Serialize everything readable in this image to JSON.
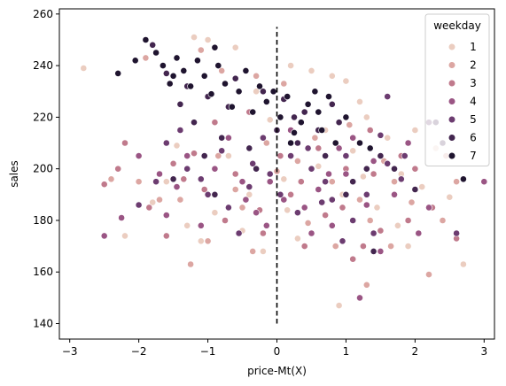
{
  "chart_data": {
    "type": "scatter",
    "xlabel": "price-Mt(X)",
    "ylabel": "sales",
    "xlim": [
      -3.15,
      3.15
    ],
    "ylim": [
      134,
      262
    ],
    "xticks": [
      -3,
      -2,
      -1,
      0,
      1,
      2,
      3
    ],
    "xtick_labels": [
      "−3",
      "−2",
      "−1",
      "0",
      "1",
      "2",
      "3"
    ],
    "yticks": [
      140,
      160,
      180,
      200,
      220,
      240,
      260
    ],
    "ytick_labels": [
      "140",
      "160",
      "180",
      "200",
      "220",
      "240",
      "260"
    ],
    "grid": false,
    "legend": {
      "title": "weekday",
      "placement": "top-right",
      "entries": [
        "1",
        "2",
        "3",
        "4",
        "5",
        "6",
        "7"
      ]
    },
    "palette": {
      "1": "#ebcdc0",
      "2": "#dca6a2",
      "3": "#c07a8c",
      "4": "#9a5584",
      "5": "#6c3c70",
      "6": "#43264f",
      "7": "#1f142f"
    },
    "reference_line": {
      "x": 0,
      "y_from": 140,
      "y_to": 255,
      "style": "dashed",
      "color": "#000000"
    },
    "series": [
      {
        "name": "1",
        "points": [
          [
            -2.8,
            239
          ],
          [
            -1.2,
            251
          ],
          [
            -1.0,
            250
          ],
          [
            -0.6,
            247
          ],
          [
            0.2,
            240
          ],
          [
            0.5,
            238
          ],
          [
            0.8,
            236
          ],
          [
            1.0,
            234
          ],
          [
            1.2,
            226
          ],
          [
            2.5,
            189
          ],
          [
            2.7,
            163
          ],
          [
            1.9,
            170
          ],
          [
            2.1,
            193
          ],
          [
            1.5,
            205
          ],
          [
            1.8,
            198
          ],
          [
            0.9,
            147
          ],
          [
            -0.2,
            168
          ],
          [
            0.3,
            173
          ],
          [
            -1.6,
            195
          ],
          [
            -1.3,
            178
          ],
          [
            -0.9,
            183
          ],
          [
            -0.4,
            190
          ],
          [
            0.1,
            196
          ],
          [
            0.6,
            201
          ],
          [
            1.1,
            207
          ],
          [
            1.6,
            212
          ],
          [
            2.0,
            215
          ],
          [
            -2.2,
            174
          ],
          [
            -1.8,
            187
          ],
          [
            -0.7,
            205
          ],
          [
            0.4,
            222
          ],
          [
            0.7,
            215
          ],
          [
            1.3,
            220
          ],
          [
            -0.3,
            230
          ],
          [
            -0.1,
            219
          ],
          [
            0.95,
            190
          ],
          [
            1.45,
            185
          ],
          [
            1.75,
            178
          ],
          [
            -1.1,
            172
          ],
          [
            -0.5,
            176
          ],
          [
            0.15,
            184
          ],
          [
            2.3,
            208
          ],
          [
            1.25,
            197
          ],
          [
            -1.45,
            209
          ]
        ]
      },
      {
        "name": "2",
        "points": [
          [
            -1.9,
            243
          ],
          [
            -1.1,
            246
          ],
          [
            -0.8,
            238
          ],
          [
            -0.3,
            236
          ],
          [
            0.1,
            233
          ],
          [
            2.2,
            159
          ],
          [
            2.4,
            180
          ],
          [
            1.3,
            155
          ],
          [
            -1.4,
            188
          ],
          [
            -1.0,
            172
          ],
          [
            -0.5,
            185
          ],
          [
            0.0,
            199
          ],
          [
            0.3,
            203
          ],
          [
            0.8,
            195
          ],
          [
            1.2,
            188
          ],
          [
            1.7,
            195
          ],
          [
            2.6,
            195
          ],
          [
            -2.4,
            196
          ],
          [
            -1.7,
            188
          ],
          [
            -1.25,
            163
          ],
          [
            -0.6,
            192
          ],
          [
            0.55,
            212
          ],
          [
            1.05,
            217
          ],
          [
            1.55,
            203
          ],
          [
            1.95,
            187
          ],
          [
            -0.15,
            210
          ],
          [
            0.45,
            179
          ],
          [
            0.85,
            170
          ],
          [
            1.35,
            180
          ],
          [
            -0.85,
            205
          ],
          [
            -2.0,
            195
          ],
          [
            2.45,
            205
          ],
          [
            1.65,
            170
          ],
          [
            -0.35,
            168
          ]
        ]
      },
      {
        "name": "3",
        "points": [
          [
            -2.2,
            210
          ],
          [
            -2.3,
            200
          ],
          [
            -1.5,
            202
          ],
          [
            -1.2,
            206
          ],
          [
            -0.6,
            198
          ],
          [
            0.2,
            190
          ],
          [
            0.7,
            182
          ],
          [
            1.4,
            198
          ],
          [
            1.8,
            205
          ],
          [
            2.6,
            173
          ],
          [
            -1.6,
            174
          ],
          [
            -0.2,
            175
          ],
          [
            0.4,
            170
          ],
          [
            1.1,
            165
          ],
          [
            1.5,
            176
          ],
          [
            2.0,
            200
          ],
          [
            -0.9,
            218
          ],
          [
            -0.4,
            222
          ],
          [
            0.6,
            208
          ],
          [
            1.0,
            200
          ],
          [
            1.35,
            215
          ],
          [
            -1.85,
            185
          ],
          [
            -1.05,
            192
          ],
          [
            -0.25,
            184
          ],
          [
            0.95,
            185
          ],
          [
            1.25,
            170
          ],
          [
            1.7,
            190
          ],
          [
            0.35,
            195
          ],
          [
            -0.75,
            180
          ],
          [
            2.25,
            185
          ],
          [
            -2.5,
            194
          ],
          [
            1.9,
            180
          ],
          [
            0.05,
            205
          ],
          [
            -1.35,
            196
          ]
        ]
      },
      {
        "name": "4",
        "points": [
          [
            -2.5,
            174
          ],
          [
            -2.25,
            181
          ],
          [
            -1.7,
            198
          ],
          [
            -1.3,
            205
          ],
          [
            -0.9,
            200
          ],
          [
            -0.5,
            195
          ],
          [
            0.1,
            188
          ],
          [
            0.4,
            185
          ],
          [
            0.8,
            178
          ],
          [
            1.2,
            150
          ],
          [
            1.5,
            168
          ],
          [
            1.7,
            190
          ],
          [
            2.2,
            185
          ],
          [
            3.0,
            195
          ],
          [
            -1.6,
            182
          ],
          [
            -1.1,
            178
          ],
          [
            -0.3,
            183
          ],
          [
            0.6,
            192
          ],
          [
            1.0,
            198
          ],
          [
            1.4,
            203
          ],
          [
            1.9,
            210
          ],
          [
            -2.0,
            205
          ],
          [
            -0.7,
            212
          ],
          [
            0.2,
            215
          ],
          [
            0.9,
            208
          ],
          [
            -0.1,
            195
          ],
          [
            0.5,
            175
          ],
          [
            1.3,
            186
          ],
          [
            -1.45,
            193
          ],
          [
            -0.45,
            188
          ],
          [
            2.05,
            175
          ],
          [
            1.1,
            212
          ],
          [
            -0.15,
            178
          ],
          [
            0.75,
            198
          ]
        ]
      },
      {
        "name": "5",
        "points": [
          [
            -1.6,
            210
          ],
          [
            -1.3,
            200
          ],
          [
            -1.0,
            190
          ],
          [
            -0.7,
            185
          ],
          [
            -0.4,
            193
          ],
          [
            -0.1,
            198
          ],
          [
            0.2,
            205
          ],
          [
            0.5,
            200
          ],
          [
            0.8,
            188
          ],
          [
            1.1,
            180
          ],
          [
            1.4,
            175
          ],
          [
            1.6,
            202
          ],
          [
            1.8,
            196
          ],
          [
            2.2,
            218
          ],
          [
            2.6,
            175
          ],
          [
            1.6,
            228
          ],
          [
            -2.0,
            186
          ],
          [
            -1.4,
            215
          ],
          [
            -0.8,
            207
          ],
          [
            -0.2,
            212
          ],
          [
            0.3,
            183
          ],
          [
            0.7,
            195
          ],
          [
            1.0,
            205
          ],
          [
            1.3,
            190
          ],
          [
            -1.1,
            196
          ],
          [
            -0.55,
            175
          ],
          [
            0.05,
            190
          ],
          [
            0.45,
            208
          ],
          [
            0.95,
            172
          ],
          [
            1.5,
            213
          ],
          [
            -1.75,
            195
          ],
          [
            1.85,
            205
          ],
          [
            -0.35,
            202
          ],
          [
            0.65,
            187
          ]
        ]
      },
      {
        "name": "6",
        "points": [
          [
            -1.8,
            248
          ],
          [
            -1.6,
            237
          ],
          [
            -1.3,
            232
          ],
          [
            -1.0,
            228
          ],
          [
            -0.7,
            224
          ],
          [
            -0.2,
            230
          ],
          [
            0.1,
            227
          ],
          [
            0.4,
            222
          ],
          [
            0.9,
            218
          ],
          [
            1.2,
            210
          ],
          [
            1.5,
            205
          ],
          [
            1.7,
            200
          ],
          [
            2.0,
            192
          ],
          [
            2.3,
            218
          ],
          [
            2.4,
            210
          ],
          [
            1.4,
            168
          ],
          [
            -1.2,
            218
          ],
          [
            -0.8,
            212
          ],
          [
            -0.4,
            208
          ],
          [
            0.0,
            215
          ],
          [
            0.3,
            210
          ],
          [
            0.7,
            205
          ],
          [
            1.1,
            195
          ],
          [
            -1.5,
            196
          ],
          [
            -0.9,
            190
          ],
          [
            -0.3,
            200
          ],
          [
            0.6,
            215
          ],
          [
            1.0,
            190
          ],
          [
            1.3,
            200
          ],
          [
            -1.05,
            205
          ],
          [
            0.25,
            220
          ],
          [
            0.8,
            225
          ],
          [
            -0.6,
            235
          ],
          [
            -1.4,
            225
          ]
        ]
      },
      {
        "name": "7",
        "points": [
          [
            -2.3,
            237
          ],
          [
            -2.05,
            242
          ],
          [
            -1.9,
            250
          ],
          [
            -1.75,
            245
          ],
          [
            -1.65,
            240
          ],
          [
            -1.55,
            233
          ],
          [
            -1.45,
            243
          ],
          [
            -1.35,
            238
          ],
          [
            -1.25,
            232
          ],
          [
            -1.15,
            242
          ],
          [
            -1.05,
            236
          ],
          [
            -0.95,
            229
          ],
          [
            -0.85,
            240
          ],
          [
            -0.75,
            233
          ],
          [
            -0.65,
            224
          ],
          [
            -0.55,
            230
          ],
          [
            -0.45,
            238
          ],
          [
            -0.35,
            222
          ],
          [
            -0.25,
            232
          ],
          [
            -0.15,
            226
          ],
          [
            -0.05,
            230
          ],
          [
            0.05,
            220
          ],
          [
            0.15,
            228
          ],
          [
            0.25,
            214
          ],
          [
            0.35,
            218
          ],
          [
            0.45,
            225
          ],
          [
            0.55,
            230
          ],
          [
            0.65,
            215
          ],
          [
            0.75,
            228
          ],
          [
            0.85,
            210
          ],
          [
            1.0,
            220
          ],
          [
            1.2,
            210
          ],
          [
            2.7,
            196
          ],
          [
            1.35,
            208
          ],
          [
            -1.5,
            236
          ],
          [
            -0.9,
            247
          ],
          [
            0.2,
            210
          ],
          [
            0.6,
            222
          ]
        ]
      }
    ]
  }
}
